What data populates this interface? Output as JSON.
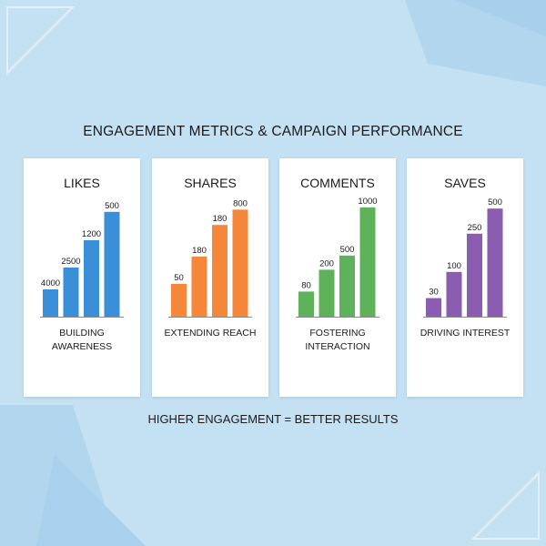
{
  "title": "ENGAGEMENT METRICS & CAMPAIGN PERFORMANCE",
  "footer": "HIGHER ENGAGEMENT = BETTER RESULTS",
  "chart_data": [
    {
      "type": "bar",
      "title": "LIKES",
      "caption": "BUILDING\nAWARENESS",
      "color": "#3b8fd9",
      "values": [
        4000,
        2500,
        1200,
        500
      ],
      "bar_levels": [
        0.25,
        0.45,
        0.7,
        0.96
      ]
    },
    {
      "type": "bar",
      "title": "SHARES",
      "caption": "EXTENDING REACH",
      "color": "#f5873a",
      "values": [
        50,
        180,
        180,
        800
      ],
      "bar_levels": [
        0.3,
        0.55,
        0.84,
        0.98
      ]
    },
    {
      "type": "bar",
      "title": "COMMENTS",
      "caption": "FOSTERING\nINTERACTION",
      "color": "#5eb35a",
      "values": [
        80,
        200,
        500,
        1000
      ],
      "bar_levels": [
        0.23,
        0.43,
        0.56,
        1.0
      ]
    },
    {
      "type": "bar",
      "title": "SAVES",
      "caption": "DRIVING INTEREST",
      "color": "#8a5db0",
      "values": [
        30,
        100,
        250,
        500
      ],
      "bar_levels": [
        0.17,
        0.41,
        0.76,
        0.99
      ]
    }
  ]
}
